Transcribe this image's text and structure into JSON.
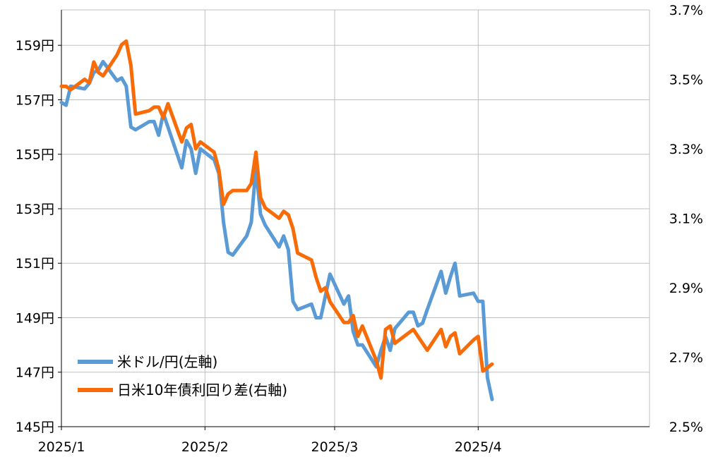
{
  "chart_data": {
    "type": "line",
    "grid": true,
    "legend_position": "bottom-left",
    "x_ticks": [
      {
        "label": "2025/1",
        "date": "2025-01-01"
      },
      {
        "label": "2025/2",
        "date": "2025-02-01"
      },
      {
        "label": "2025/3",
        "date": "2025-03-01"
      },
      {
        "label": "2025/4",
        "date": "2025-04-01"
      }
    ],
    "x_range": [
      "2025-01-01",
      "2025-05-08"
    ],
    "y_left": {
      "ticks": [
        "145円",
        "147円",
        "149円",
        "151円",
        "153円",
        "155円",
        "157円",
        "159円"
      ],
      "tick_values": [
        145,
        147,
        149,
        151,
        153,
        155,
        157,
        159
      ],
      "range": [
        145,
        160.3
      ]
    },
    "y_right": {
      "ticks": [
        "2.5%",
        "2.7%",
        "2.9%",
        "3.1%",
        "3.3%",
        "3.5%",
        "3.7%"
      ],
      "tick_values": [
        2.5,
        2.7,
        2.9,
        3.1,
        3.3,
        3.5,
        3.7
      ],
      "range": [
        2.5,
        3.7
      ]
    },
    "series": [
      {
        "name": "米ドル/円(左軸)",
        "color": "#5B9BD5",
        "axis": "left",
        "points": [
          [
            "2025-01-01",
            156.9
          ],
          [
            "2025-01-02",
            156.8
          ],
          [
            "2025-01-03",
            157.5
          ],
          [
            "2025-01-06",
            157.4
          ],
          [
            "2025-01-07",
            157.6
          ],
          [
            "2025-01-08",
            158.0
          ],
          [
            "2025-01-09",
            158.1
          ],
          [
            "2025-01-10",
            158.4
          ],
          [
            "2025-01-13",
            157.7
          ],
          [
            "2025-01-14",
            157.8
          ],
          [
            "2025-01-15",
            157.5
          ],
          [
            "2025-01-16",
            156.0
          ],
          [
            "2025-01-17",
            155.9
          ],
          [
            "2025-01-20",
            156.2
          ],
          [
            "2025-01-21",
            156.2
          ],
          [
            "2025-01-22",
            155.7
          ],
          [
            "2025-01-23",
            156.5
          ],
          [
            "2025-01-24",
            156.0
          ],
          [
            "2025-01-27",
            154.5
          ],
          [
            "2025-01-28",
            155.5
          ],
          [
            "2025-01-29",
            155.2
          ],
          [
            "2025-01-30",
            154.3
          ],
          [
            "2025-01-31",
            155.2
          ],
          [
            "2025-02-03",
            154.8
          ],
          [
            "2025-02-04",
            154.3
          ],
          [
            "2025-02-05",
            152.5
          ],
          [
            "2025-02-06",
            151.4
          ],
          [
            "2025-02-07",
            151.3
          ],
          [
            "2025-02-10",
            152.0
          ],
          [
            "2025-02-11",
            152.5
          ],
          [
            "2025-02-12",
            154.5
          ],
          [
            "2025-02-13",
            152.8
          ],
          [
            "2025-02-14",
            152.4
          ],
          [
            "2025-02-17",
            151.6
          ],
          [
            "2025-02-18",
            152.0
          ],
          [
            "2025-02-19",
            151.5
          ],
          [
            "2025-02-20",
            149.6
          ],
          [
            "2025-02-21",
            149.3
          ],
          [
            "2025-02-24",
            149.5
          ],
          [
            "2025-02-25",
            149.0
          ],
          [
            "2025-02-26",
            149.0
          ],
          [
            "2025-02-27",
            149.8
          ],
          [
            "2025-02-28",
            150.6
          ],
          [
            "2025-03-03",
            149.5
          ],
          [
            "2025-03-04",
            149.8
          ],
          [
            "2025-03-05",
            148.5
          ],
          [
            "2025-03-06",
            148.0
          ],
          [
            "2025-03-07",
            148.0
          ],
          [
            "2025-03-10",
            147.2
          ],
          [
            "2025-03-11",
            147.8
          ],
          [
            "2025-03-12",
            148.3
          ],
          [
            "2025-03-13",
            147.8
          ],
          [
            "2025-03-14",
            148.6
          ],
          [
            "2025-03-17",
            149.2
          ],
          [
            "2025-03-18",
            149.2
          ],
          [
            "2025-03-19",
            148.7
          ],
          [
            "2025-03-20",
            148.8
          ],
          [
            "2025-03-21",
            149.3
          ],
          [
            "2025-03-24",
            150.7
          ],
          [
            "2025-03-25",
            149.9
          ],
          [
            "2025-03-26",
            150.5
          ],
          [
            "2025-03-27",
            151.0
          ],
          [
            "2025-03-28",
            149.8
          ],
          [
            "2025-03-31",
            149.9
          ],
          [
            "2025-04-01",
            149.6
          ],
          [
            "2025-04-02",
            149.6
          ],
          [
            "2025-04-03",
            146.8
          ],
          [
            "2025-04-04",
            146.0
          ]
        ]
      },
      {
        "name": "日米10年債利回り差(右軸)",
        "color": "#F96B07",
        "axis": "right",
        "points": [
          [
            "2025-01-01",
            3.48
          ],
          [
            "2025-01-02",
            3.48
          ],
          [
            "2025-01-03",
            3.47
          ],
          [
            "2025-01-06",
            3.5
          ],
          [
            "2025-01-07",
            3.49
          ],
          [
            "2025-01-08",
            3.55
          ],
          [
            "2025-01-09",
            3.52
          ],
          [
            "2025-01-10",
            3.51
          ],
          [
            "2025-01-13",
            3.57
          ],
          [
            "2025-01-14",
            3.6
          ],
          [
            "2025-01-15",
            3.61
          ],
          [
            "2025-01-16",
            3.54
          ],
          [
            "2025-01-17",
            3.4
          ],
          [
            "2025-01-20",
            3.41
          ],
          [
            "2025-01-21",
            3.42
          ],
          [
            "2025-01-22",
            3.42
          ],
          [
            "2025-01-23",
            3.39
          ],
          [
            "2025-01-24",
            3.43
          ],
          [
            "2025-01-27",
            3.32
          ],
          [
            "2025-01-28",
            3.36
          ],
          [
            "2025-01-29",
            3.37
          ],
          [
            "2025-01-30",
            3.3
          ],
          [
            "2025-01-31",
            3.32
          ],
          [
            "2025-02-03",
            3.29
          ],
          [
            "2025-02-04",
            3.24
          ],
          [
            "2025-02-05",
            3.14
          ],
          [
            "2025-02-06",
            3.17
          ],
          [
            "2025-02-07",
            3.18
          ],
          [
            "2025-02-10",
            3.18
          ],
          [
            "2025-02-11",
            3.2
          ],
          [
            "2025-02-12",
            3.29
          ],
          [
            "2025-02-13",
            3.16
          ],
          [
            "2025-02-14",
            3.13
          ],
          [
            "2025-02-17",
            3.1
          ],
          [
            "2025-02-18",
            3.12
          ],
          [
            "2025-02-19",
            3.11
          ],
          [
            "2025-02-20",
            3.07
          ],
          [
            "2025-02-21",
            3.0
          ],
          [
            "2025-02-24",
            2.98
          ],
          [
            "2025-02-25",
            2.93
          ],
          [
            "2025-02-26",
            2.89
          ],
          [
            "2025-02-27",
            2.9
          ],
          [
            "2025-02-28",
            2.86
          ],
          [
            "2025-03-03",
            2.8
          ],
          [
            "2025-03-04",
            2.8
          ],
          [
            "2025-03-05",
            2.82
          ],
          [
            "2025-03-06",
            2.76
          ],
          [
            "2025-03-07",
            2.79
          ],
          [
            "2025-03-10",
            2.69
          ],
          [
            "2025-03-11",
            2.64
          ],
          [
            "2025-03-12",
            2.78
          ],
          [
            "2025-03-13",
            2.79
          ],
          [
            "2025-03-14",
            2.74
          ],
          [
            "2025-03-17",
            2.77
          ],
          [
            "2025-03-18",
            2.78
          ],
          [
            "2025-03-19",
            2.76
          ],
          [
            "2025-03-20",
            2.74
          ],
          [
            "2025-03-21",
            2.72
          ],
          [
            "2025-03-24",
            2.78
          ],
          [
            "2025-03-25",
            2.73
          ],
          [
            "2025-03-26",
            2.76
          ],
          [
            "2025-03-27",
            2.77
          ],
          [
            "2025-03-28",
            2.71
          ],
          [
            "2025-03-31",
            2.75
          ],
          [
            "2025-04-01",
            2.76
          ],
          [
            "2025-04-02",
            2.66
          ],
          [
            "2025-04-03",
            2.67
          ],
          [
            "2025-04-04",
            2.68
          ]
        ]
      }
    ]
  }
}
